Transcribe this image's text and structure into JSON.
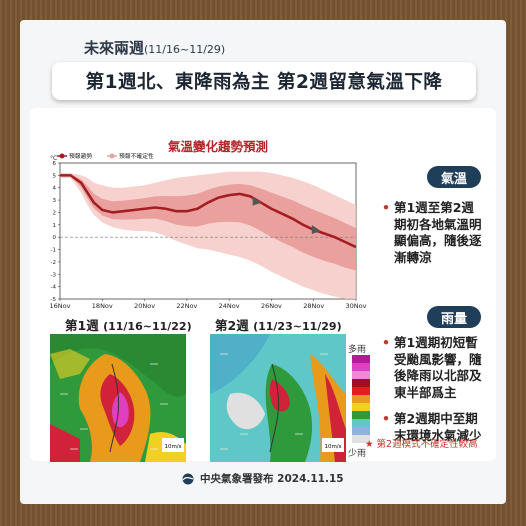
{
  "header": {
    "subtitle": "未來兩週",
    "date_range": "(11/16~11/29)",
    "title": "第1週北、東降雨為主  第2週留意氣溫下降"
  },
  "chart_data": {
    "type": "line",
    "title": "氣溫變化趨勢預測",
    "unit_label": "°C",
    "legend": [
      {
        "name": "預報趨勢",
        "color": "#a31e22"
      },
      {
        "name": "預報不確定性",
        "color": "#e9a4a4"
      }
    ],
    "legend_placement": "top-left",
    "x_tick_labels": [
      "16Nov",
      "18Nov",
      "20Nov",
      "22Nov",
      "24Nov",
      "26Nov",
      "28Nov",
      "30Nov"
    ],
    "y_ticks": [
      -5,
      -4,
      -3,
      -2,
      -1,
      0,
      1,
      2,
      3,
      4,
      5,
      6
    ],
    "ylim": [
      -5,
      6
    ],
    "xlim": [
      16,
      30
    ],
    "zero_line": "dashed",
    "series": [
      {
        "name": "預報趨勢",
        "x": [
          16,
          16.5,
          17,
          17.3,
          17.6,
          18,
          18.5,
          19,
          19.5,
          20,
          20.5,
          21,
          21.5,
          22,
          22.5,
          23,
          23.5,
          24,
          24.5,
          25,
          25.5,
          26,
          26.5,
          27,
          27.5,
          28,
          28.5,
          29,
          29.5,
          30
        ],
        "y": [
          5.0,
          5.0,
          4.4,
          3.6,
          2.8,
          2.2,
          2.0,
          2.1,
          2.2,
          2.3,
          2.4,
          2.3,
          2.1,
          2.1,
          2.3,
          2.8,
          3.2,
          3.4,
          3.5,
          3.3,
          2.8,
          2.3,
          1.9,
          1.5,
          1.0,
          0.6,
          0.3,
          0.0,
          -0.4,
          -0.8
        ],
        "band_upper": [
          5.2,
          5.2,
          5.0,
          4.8,
          4.4,
          4.2,
          4.0,
          4.0,
          4.1,
          4.2,
          4.4,
          4.6,
          4.8,
          4.9,
          5.0,
          5.1,
          5.2,
          5.3,
          5.3,
          5.3,
          5.3,
          5.2,
          5.0,
          4.8,
          4.5,
          4.2,
          3.8,
          3.4,
          3.0,
          2.6
        ],
        "band_lower": [
          4.8,
          4.8,
          3.6,
          2.6,
          1.8,
          1.2,
          0.8,
          0.6,
          0.5,
          0.5,
          0.4,
          0.1,
          -0.3,
          -0.6,
          -0.9,
          -1.0,
          -1.2,
          -1.4,
          -1.6,
          -1.9,
          -2.3,
          -2.8,
          -3.2,
          -3.6,
          -4.0,
          -4.3,
          -4.6,
          -4.8,
          -5.0,
          -5.0
        ]
      }
    ]
  },
  "temperature": {
    "badge": "氣溫",
    "bullet": "第1週至第2週期初各地氣溫明顯偏高，隨後逐漸轉涼"
  },
  "rain": {
    "badge": "雨量",
    "bullets": [
      "第1週期初短暫受颱風影響，隨後降雨以北部及東半部爲主",
      "第2週期中至期末環境水氣減少"
    ],
    "note": "★ 第2週模式不確定性較高"
  },
  "maps": [
    {
      "label": "第1週",
      "range": "(11/16~11/22)",
      "scale_text": "10m/s"
    },
    {
      "label": "第2週",
      "range": "(11/23~11/29)",
      "scale_text": "10m/s"
    }
  ],
  "rain_scale": {
    "high": "多雨",
    "low": "少雨"
  },
  "footer": {
    "text": "中央氣象署發布 2024.11.15"
  },
  "colors": {
    "frame": "#7a5633",
    "badge": "#1f3e59",
    "accent": "#c0392b"
  }
}
